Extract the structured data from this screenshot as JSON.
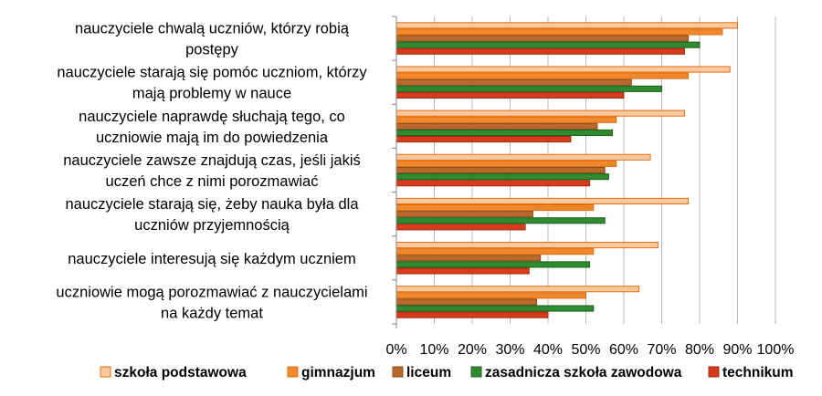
{
  "chart_data": {
    "type": "bar",
    "orientation": "horizontal",
    "categories": [
      [
        "nauczyciele chwalą uczniów, którzy robią",
        "postępy"
      ],
      [
        "nauczyciele starają się pomóc uczniom, którzy",
        "mają problemy w nauce"
      ],
      [
        "nauczyciele naprawdę słuchają tego, co",
        "uczniowie mają im do powiedzenia"
      ],
      [
        "nauczyciele zawsze znajdują czas, jeśli jakiś",
        "uczeń chce z nimi porozmawiać"
      ],
      [
        "nauczyciele starają się, żeby nauka była dla",
        "uczniów przyjemnością"
      ],
      [
        "nauczyciele interesują się każdym uczniem"
      ],
      [
        "uczniowie mogą porozmawiać z nauczycielami",
        "na każdy temat"
      ]
    ],
    "series": [
      {
        "name": "szkoła podstawowa",
        "color": "#FBC9A0",
        "stroke": "#E46C0A",
        "values": [
          90,
          88,
          76,
          67,
          77,
          69,
          64
        ]
      },
      {
        "name": "gimnazjum",
        "color": "#F0882E",
        "stroke": "#E46C0A",
        "values": [
          86,
          77,
          58,
          58,
          52,
          52,
          50
        ]
      },
      {
        "name": "liceum",
        "color": "#B86A2E",
        "stroke": "#8E4A14",
        "values": [
          77,
          62,
          53,
          55,
          36,
          38,
          37
        ]
      },
      {
        "name": "zasadnicza szkoła zawodowa",
        "color": "#2E8B2E",
        "stroke": "#1F5F1F",
        "values": [
          80,
          70,
          57,
          56,
          55,
          51,
          52
        ]
      },
      {
        "name": "technikum",
        "color": "#D93A1C",
        "stroke": "#A02A12",
        "values": [
          76,
          60,
          46,
          51,
          34,
          35,
          40
        ]
      }
    ],
    "x_ticks": [
      "0%",
      "10%",
      "20%",
      "30%",
      "40%",
      "50%",
      "60%",
      "70%",
      "80%",
      "90%",
      "100%"
    ],
    "xlim": [
      0,
      100
    ],
    "grid": true,
    "legend_position": "bottom"
  }
}
